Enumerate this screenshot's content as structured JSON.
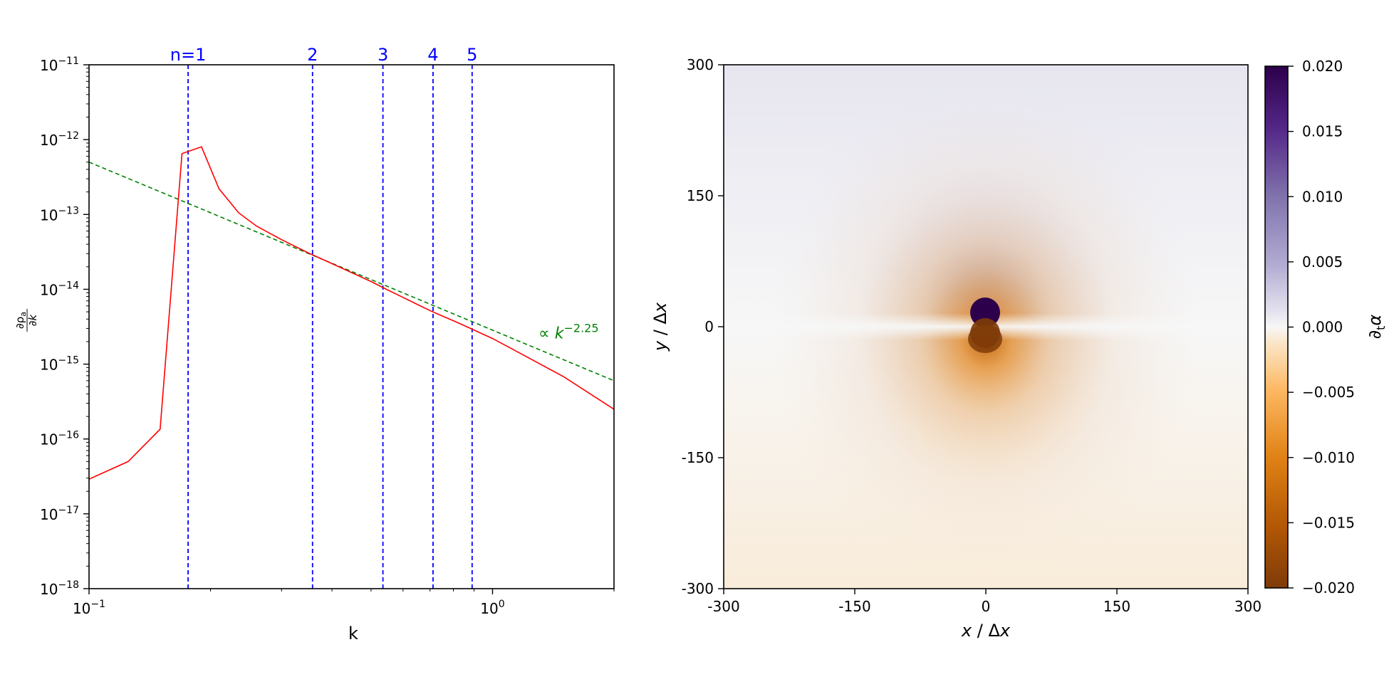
{
  "chart_data": [
    {
      "type": "line",
      "xscale": "log",
      "yscale": "log",
      "xlabel": "k",
      "xlim": [
        0.1,
        2.0
      ],
      "ylim": [
        1e-18,
        1e-11
      ],
      "xticks": [
        {
          "value": 0.1,
          "base": "10",
          "exp": "−1"
        },
        {
          "value": 1.0,
          "base": "10",
          "exp": "0"
        }
      ],
      "yticks": [
        {
          "value": 1e-11,
          "base": "10",
          "exp": "−11"
        },
        {
          "value": 1e-12,
          "base": "10",
          "exp": "−12"
        },
        {
          "value": 1e-13,
          "base": "10",
          "exp": "−13"
        },
        {
          "value": 1e-14,
          "base": "10",
          "exp": "−14"
        },
        {
          "value": 1e-15,
          "base": "10",
          "exp": "−15"
        },
        {
          "value": 1e-16,
          "base": "10",
          "exp": "−16"
        },
        {
          "value": 1e-17,
          "base": "10",
          "exp": "−17"
        },
        {
          "value": 1e-18,
          "base": "10",
          "exp": "−18"
        }
      ],
      "ylabel": {
        "num": "∂ρ",
        "num_sub": "a",
        "den": "∂k"
      },
      "series": [
        {
          "color": "#ff0000",
          "x": [
            0.1,
            0.125,
            0.15,
            0.17,
            0.19,
            0.21,
            0.235,
            0.26,
            0.3,
            0.35,
            0.4,
            0.45,
            0.5,
            0.55,
            0.6,
            0.65,
            0.7,
            0.75,
            0.8,
            0.87,
            1.0,
            1.2,
            1.5,
            2.0
          ],
          "y": [
            2.9e-17,
            5e-17,
            1.35e-16,
            6.5e-13,
            8e-13,
            2.2e-13,
            1.05e-13,
            7e-14,
            4.6e-14,
            3.05e-14,
            2.2e-14,
            1.65e-14,
            1.27e-14,
            9.8e-15,
            7.8e-15,
            6.3e-15,
            5.2e-15,
            4.4e-15,
            3.8e-15,
            3.1e-15,
            2.2e-15,
            1.3e-15,
            6.8e-16,
            2.5e-16
          ]
        }
      ],
      "fit_line": {
        "color": "#008000",
        "label_prefix": "∝ ",
        "label_base": "k",
        "label_exp": "−2.25",
        "x": [
          0.1,
          2.0
        ],
        "y": [
          5e-13,
          6e-16
        ],
        "label_at": [
          1.3,
          2.2e-15
        ]
      },
      "mode_lines": {
        "color": "#0000ff",
        "items": [
          {
            "x": 0.176,
            "label": "n=1"
          },
          {
            "x": 0.358,
            "label": "2"
          },
          {
            "x": 0.535,
            "label": "3"
          },
          {
            "x": 0.712,
            "label": "4"
          },
          {
            "x": 0.89,
            "label": "5"
          }
        ]
      }
    },
    {
      "type": "heatmap",
      "xlabel": {
        "var": "x",
        "sep": " / Δ",
        "var2": "x"
      },
      "ylabel": {
        "var": "y",
        "sep": " / Δ",
        "var2": "x"
      },
      "xlim": [
        -300,
        300
      ],
      "ylim": [
        -300,
        300
      ],
      "xticks": [
        "-300",
        "-150",
        "0",
        "150",
        "300"
      ],
      "yticks": [
        "300",
        "150",
        "0",
        "-150",
        "-300"
      ],
      "colormap": "PuOr",
      "colorbar": {
        "label": "∂",
        "label_sub": "t",
        "label_tail": "α",
        "range": [
          -0.02,
          0.02
        ],
        "ticks": [
          "0.020",
          "0.015",
          "0.010",
          "0.005",
          "0.000",
          "−0.005",
          "−0.010",
          "−0.015",
          "−0.020"
        ]
      },
      "features": {
        "positive_blob": {
          "x": 0,
          "y": 15
        },
        "negative_blob": {
          "x": 0,
          "y": -15
        }
      }
    }
  ]
}
